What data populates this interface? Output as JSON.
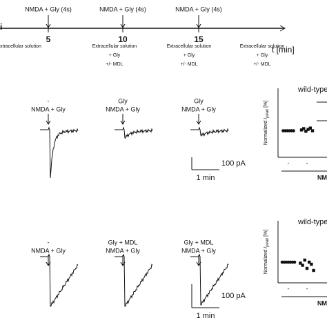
{
  "timeline": {
    "panel_letter": "i",
    "stimulus": [
      "NMDA + Gly (4s)",
      "NMDA + Gly (4s)",
      "NMDA + Gly (4s)"
    ],
    "times": [
      "5",
      "10",
      "15"
    ],
    "axis_label": "t [min]",
    "solutions": [
      {
        "lines": [
          "xtracellular solution"
        ]
      },
      {
        "lines": [
          "Extracellular solution",
          "+ Gly",
          "+/- MDL"
        ]
      },
      {
        "lines": [
          "Extracellular solution",
          "+ Gly",
          "+/- MDL"
        ]
      },
      {
        "lines": [
          "Extracellular solution",
          "+ Gly",
          "+/- MDL"
        ]
      }
    ]
  },
  "traces": [
    {
      "labels": [
        [
          "-",
          "NMDA + Gly"
        ],
        [
          "Gly",
          "NMDA + Gly"
        ],
        [
          "Gly",
          "NMDA + Gly"
        ]
      ],
      "scale_current": "100 pA",
      "scale_time": "1 min"
    },
    {
      "labels": [
        [
          "-",
          "NMDA + Gly"
        ],
        [
          "Gly + MDL",
          "NMDA + Gly"
        ],
        [
          "Gly + MDL",
          "NMDA + Gly"
        ]
      ],
      "scale_current": "100 pA",
      "scale_time": "1 min"
    }
  ],
  "chart_data": [
    {
      "type": "scatter",
      "title": "wild-type",
      "ylabel": "Normalized ",
      "ylabel_symbol": "I",
      "ylabel_sub": "peak",
      "ylabel_unit": " [%]",
      "categories": [
        "-",
        "-"
      ],
      "group_label": "NMDA",
      "ylim": [
        0,
        260
      ],
      "color": "#111111",
      "groups": [
        {
          "values": [
            100,
            100,
            100,
            100,
            100,
            100
          ]
        },
        {
          "values": [
            103,
            108,
            98,
            105,
            110,
            100
          ]
        }
      ]
    },
    {
      "type": "scatter",
      "title": "wild-type",
      "ylabel": "Normalized ",
      "ylabel_symbol": "I",
      "ylabel_sub": "peak",
      "ylabel_unit": " [%]",
      "categories": [
        "-",
        "-"
      ],
      "group_label": "NMDA",
      "ylim": [
        0,
        300
      ],
      "color": "#111111",
      "groups": [
        {
          "values": [
            100,
            100,
            100,
            100,
            100,
            100,
            100
          ]
        },
        {
          "values": [
            95,
            85,
            110,
            70,
            100,
            90,
            60
          ]
        }
      ]
    }
  ]
}
